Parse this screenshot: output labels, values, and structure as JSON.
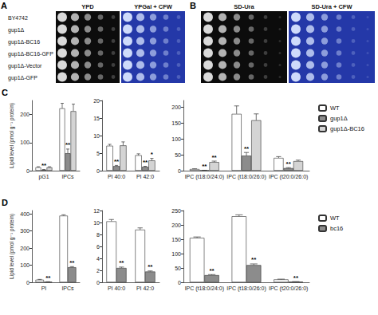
{
  "spot_assays": {
    "strains": [
      "BY4742",
      "gup1Δ",
      "gup1Δ-BC16",
      "gup1Δ-BC16-GFP",
      "gup1Δ-Vector",
      "gup1Δ-GFP"
    ],
    "panels": [
      {
        "label": "A",
        "conditions": [
          "YPD",
          "YPGal + CFW"
        ]
      },
      {
        "label": "B",
        "conditions": [
          "SD-Ura",
          "SD-Ura + CFW"
        ]
      }
    ]
  },
  "chart_data": [
    {
      "type": "bar",
      "panel": "C",
      "ylabel": "Lipid level (pmol g⁻¹ protein)",
      "categories": [
        "pG1",
        "IPCs"
      ],
      "ylim": [
        0,
        250
      ],
      "yticks": [
        0,
        100,
        200
      ],
      "series": [
        {
          "name": "WT",
          "color": "#ffffff",
          "values": [
            12,
            222
          ],
          "errors": [
            2,
            18
          ]
        },
        {
          "name": "gup1Δ",
          "color": "#8c8c8c",
          "values": [
            3,
            62
          ],
          "errors": [
            1,
            15
          ],
          "annotations": [
            "**",
            "**"
          ]
        },
        {
          "name": "gup1Δ-BC16",
          "color": "#d4d4d4",
          "values": [
            12,
            212
          ],
          "errors": [
            2,
            25
          ]
        }
      ]
    },
    {
      "type": "bar",
      "categories": [
        "PI 40:0",
        "PI 42:0"
      ],
      "ylim": [
        0,
        20
      ],
      "yticks": [
        0,
        5,
        10,
        15,
        20
      ],
      "series": [
        {
          "name": "WT",
          "color": "#ffffff",
          "values": [
            7.1,
            4.4
          ],
          "errors": [
            0.4,
            0.4
          ]
        },
        {
          "name": "gup1Δ",
          "color": "#8c8c8c",
          "values": [
            1.3,
            1.1
          ],
          "errors": [
            0.2,
            0.15
          ],
          "annotations": [
            "**",
            "**"
          ]
        },
        {
          "name": "gup1Δ-BC16",
          "color": "#d4d4d4",
          "values": [
            7.2,
            2.9
          ],
          "errors": [
            1.0,
            0.6
          ],
          "annotations": [
            null,
            "*"
          ]
        }
      ]
    },
    {
      "type": "bar",
      "legend": "right",
      "categories": [
        "IPC (t18:0/24:0)",
        "IPC (t18:0/26:0)",
        "IPC (t20:0/26:0)"
      ],
      "ylim": [
        0,
        220
      ],
      "yticks": [
        0,
        50,
        100,
        150,
        200
      ],
      "series": [
        {
          "name": "WT",
          "color": "#ffffff",
          "values": [
            5,
            178,
            40
          ],
          "errors": [
            1,
            25,
            4
          ]
        },
        {
          "name": "gup1Δ",
          "color": "#8c8c8c",
          "values": [
            1,
            47,
            8
          ],
          "errors": [
            0.3,
            10,
            1.5
          ],
          "annotations": [
            "**",
            "**",
            "**"
          ]
        },
        {
          "name": "gup1Δ-BC16",
          "color": "#d4d4d4",
          "values": [
            27,
            158,
            30
          ],
          "errors": [
            3,
            20,
            3
          ],
          "annotations": [
            "**",
            null,
            null
          ]
        }
      ]
    },
    {
      "type": "bar",
      "panel": "D",
      "ylabel": "Lipid level (pmol g⁻¹ protein)",
      "categories": [
        "PI",
        "IPCs"
      ],
      "ylim": [
        0,
        420
      ],
      "yticks": [
        0,
        100,
        200,
        300,
        400
      ],
      "series": [
        {
          "name": "WT",
          "color": "#ffffff",
          "values": [
            15,
            390
          ],
          "errors": [
            2,
            5
          ]
        },
        {
          "name": "bc16",
          "color": "#8c8c8c",
          "values": [
            3,
            88
          ],
          "errors": [
            0.5,
            4
          ],
          "annotations": [
            "**",
            "**"
          ]
        }
      ]
    },
    {
      "type": "bar",
      "categories": [
        "PI 40:0",
        "PI 42:0"
      ],
      "ylim": [
        0,
        12
      ],
      "yticks": [
        0,
        2,
        4,
        6,
        8,
        10,
        12
      ],
      "series": [
        {
          "name": "WT",
          "color": "#ffffff",
          "values": [
            10.2,
            8.8
          ],
          "errors": [
            0.3,
            0.3
          ]
        },
        {
          "name": "bc16",
          "color": "#8c8c8c",
          "values": [
            2.4,
            1.8
          ],
          "errors": [
            0.15,
            0.1
          ],
          "annotations": [
            "**",
            "**"
          ]
        }
      ]
    },
    {
      "type": "bar",
      "legend": "right",
      "categories": [
        "IPC (t18:0/24:0)",
        "IPC (t18:0/26:0)",
        "IPC (t20:0/26:0)"
      ],
      "ylim": [
        0,
        250
      ],
      "yticks": [
        0,
        50,
        100,
        150,
        200,
        250
      ],
      "series": [
        {
          "name": "WT",
          "color": "#ffffff",
          "values": [
            155,
            230,
            10
          ],
          "errors": [
            3,
            5,
            1
          ]
        },
        {
          "name": "bc16",
          "color": "#8c8c8c",
          "values": [
            25,
            60,
            2
          ],
          "errors": [
            2,
            4,
            0.5
          ],
          "annotations": [
            "**",
            "**",
            "**"
          ]
        }
      ]
    }
  ]
}
